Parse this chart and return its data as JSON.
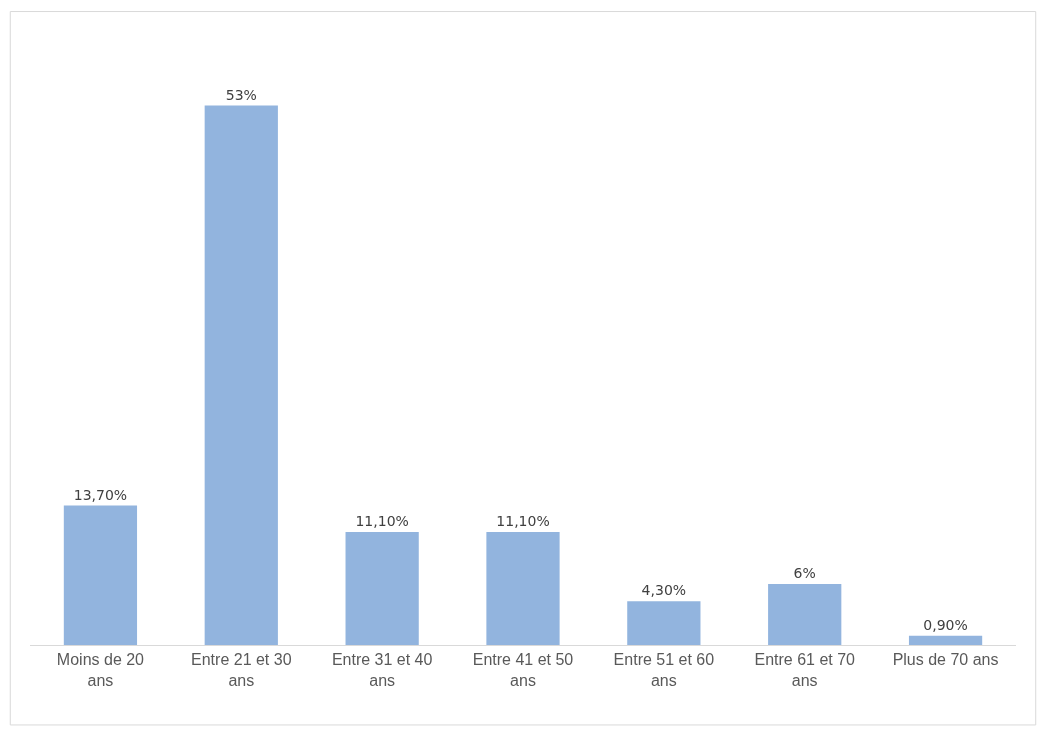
{
  "chart_data": {
    "type": "bar",
    "categories": [
      "Moins de 20 ans",
      "Entre 21 et 30 ans",
      "Entre 31 et 40 ans",
      "Entre 41 et 50 ans",
      "Entre 51 et 60 ans",
      "Entre 61 et 70 ans",
      "Plus de 70 ans"
    ],
    "values": [
      13.7,
      53,
      11.1,
      11.1,
      4.3,
      6,
      0.9
    ],
    "value_labels": [
      "13,70%",
      "53%",
      "11,10%",
      "11,10%",
      "4,30%",
      "6%",
      "0,90%"
    ],
    "color": "#92b4de"
  }
}
